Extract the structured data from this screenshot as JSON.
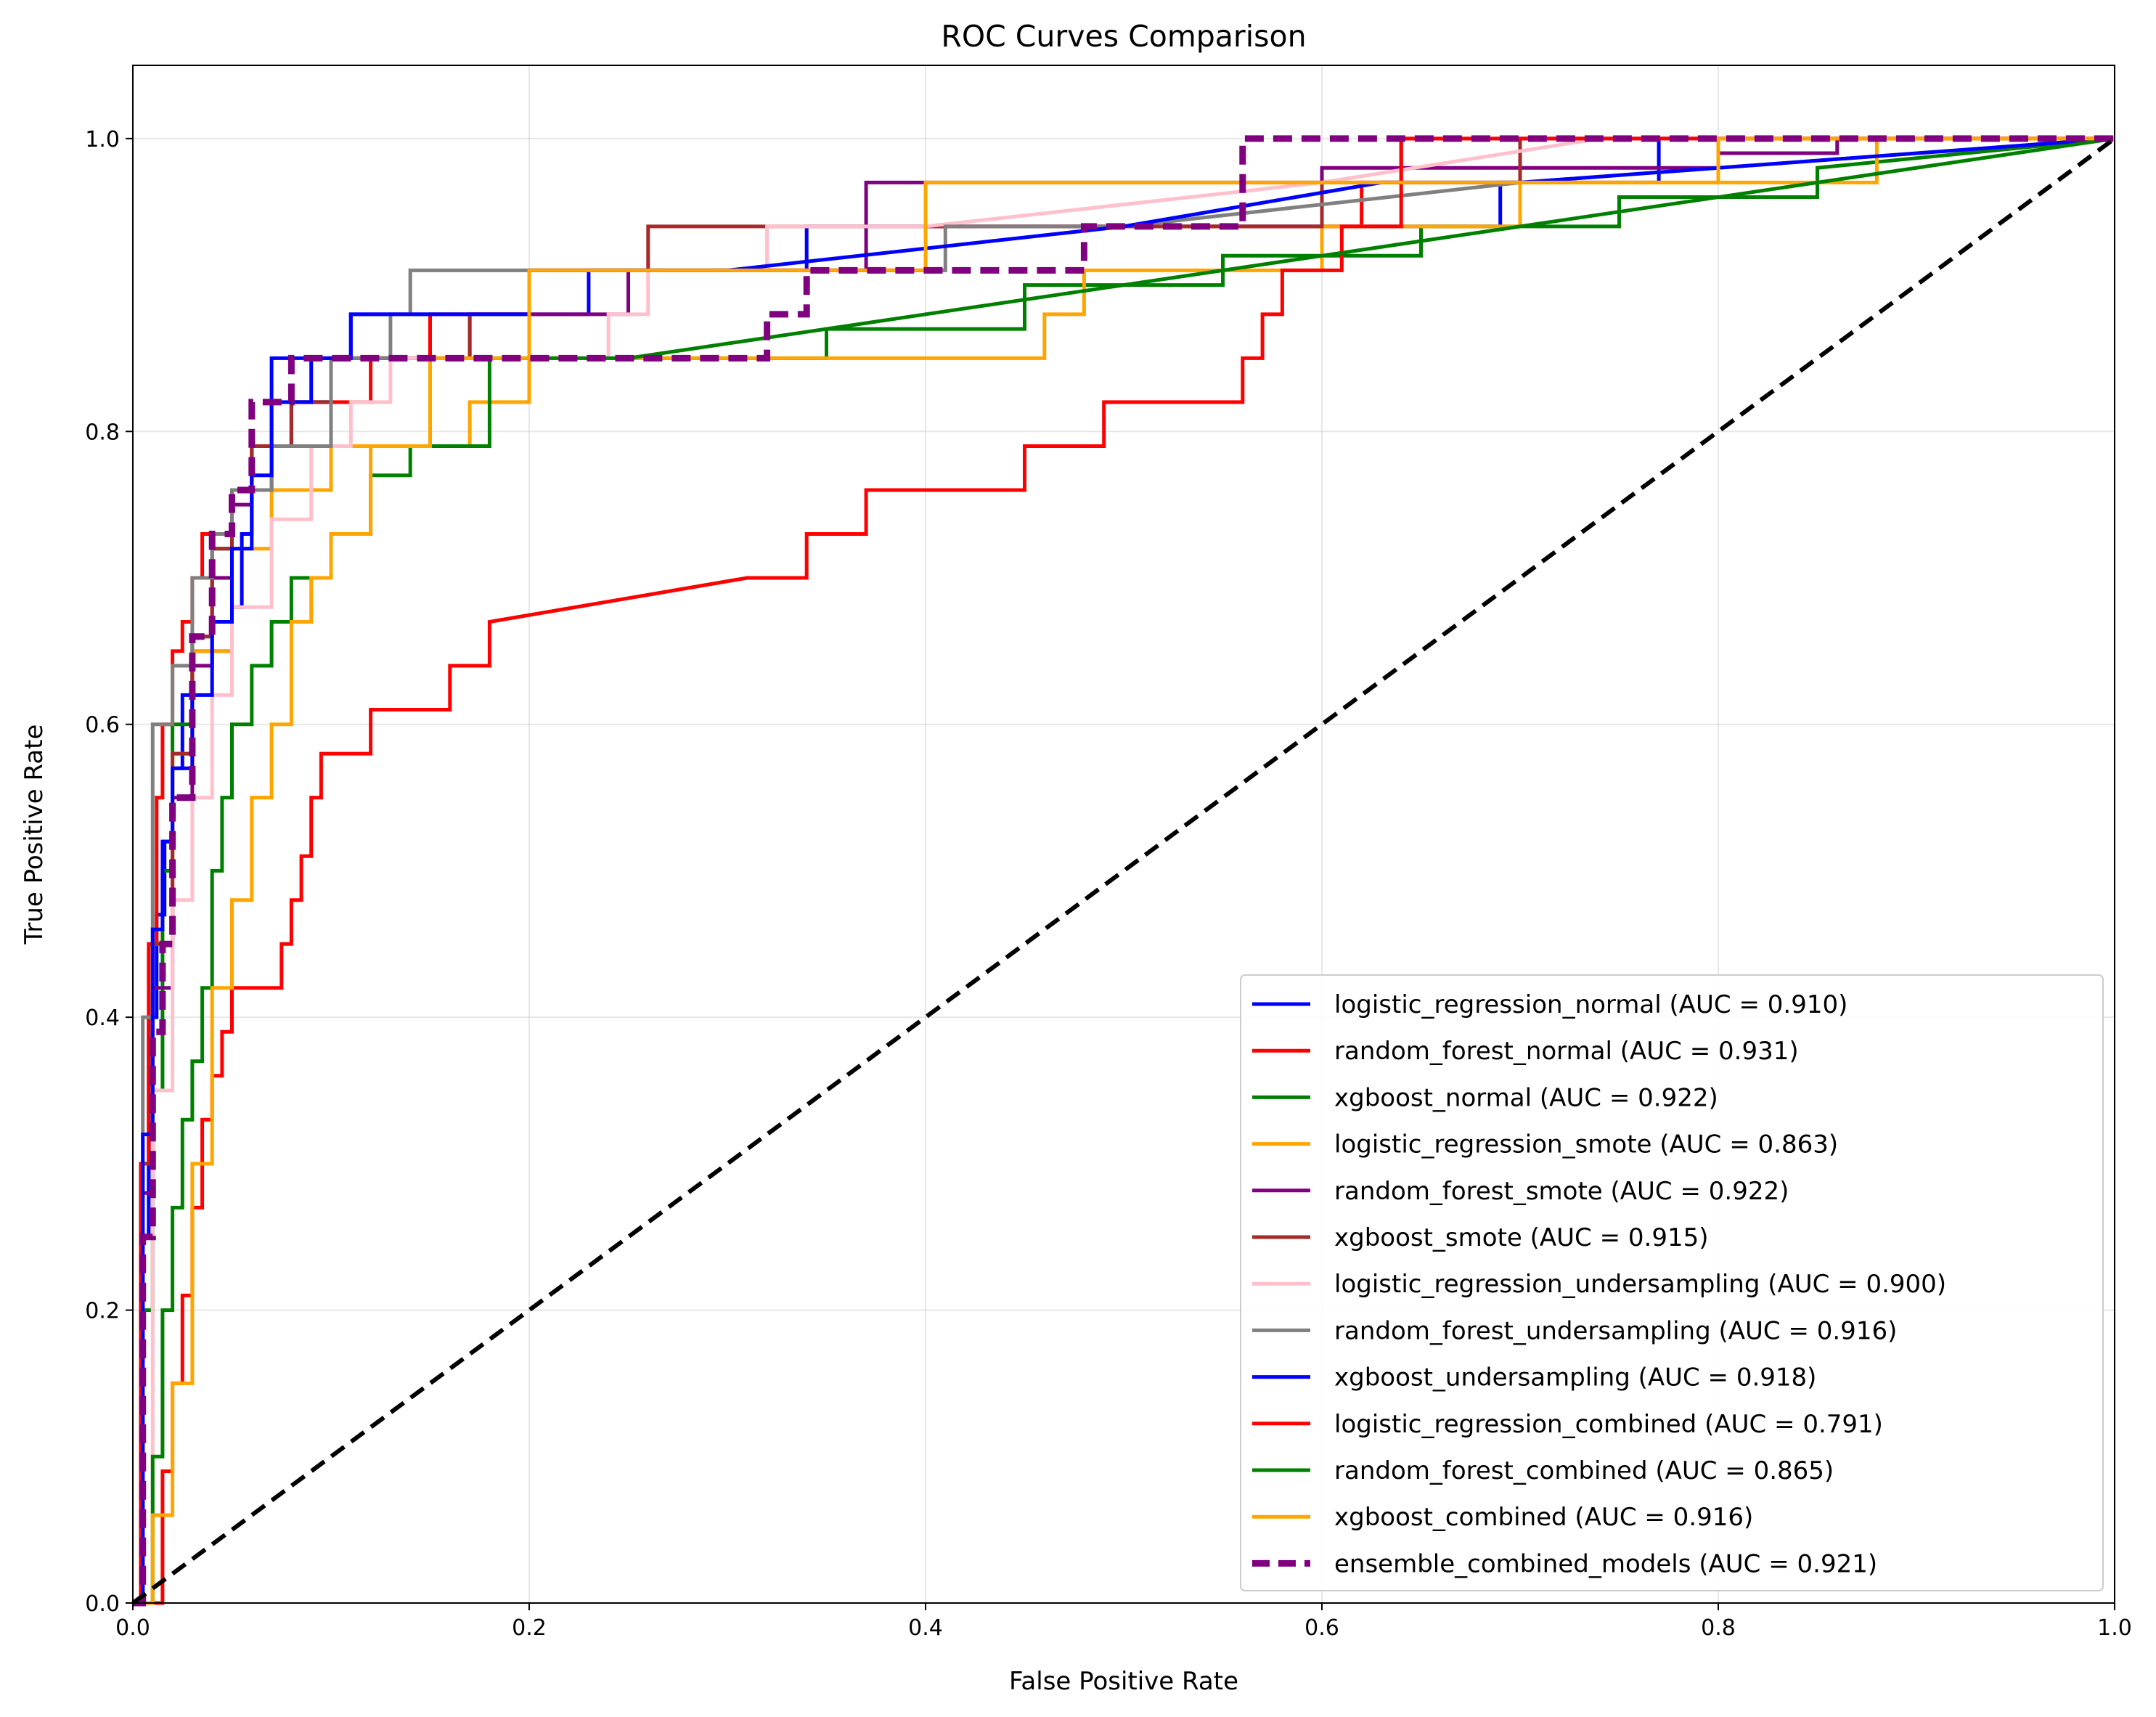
{
  "chart_data": {
    "type": "line",
    "title": "ROC Curves Comparison",
    "xlabel": "False Positive Rate",
    "ylabel": "True Positive Rate",
    "xlim": [
      0.0,
      1.0
    ],
    "ylim": [
      0.0,
      1.05
    ],
    "xticks": [
      "0.0",
      "0.2",
      "0.4",
      "0.6",
      "0.8",
      "1.0"
    ],
    "yticks": [
      "0.0",
      "0.2",
      "0.4",
      "0.6",
      "0.8",
      "1.0"
    ],
    "grid": true,
    "legend_position": "lower-right",
    "diagonal_reference": {
      "style": "dashed",
      "color": "#000000",
      "x": [
        0,
        1
      ],
      "y": [
        0,
        1
      ]
    },
    "series": [
      {
        "name": "logistic_regression_normal (AUC = 0.910)",
        "color": "#0000ff",
        "style": "solid",
        "x": [
          0,
          0.005,
          0.008,
          0.012,
          0.016,
          0.02,
          0.025,
          0.03,
          0.04,
          0.05,
          0.055,
          0.06,
          0.07,
          0.09,
          0.11,
          0.2,
          0.23,
          0.34,
          0.65,
          0.69,
          0.71,
          0.77,
          1.0
        ],
        "y": [
          0,
          0.25,
          0.4,
          0.47,
          0.52,
          0.57,
          0.62,
          0.65,
          0.65,
          0.68,
          0.73,
          0.76,
          0.85,
          0.85,
          0.88,
          0.88,
          0.91,
          0.94,
          0.94,
          0.97,
          0.97,
          1.0,
          1.0
        ]
      },
      {
        "name": "random_forest_normal (AUC = 0.931)",
        "color": "#ff0000",
        "style": "solid",
        "x": [
          0,
          0.004,
          0.008,
          0.012,
          0.015,
          0.02,
          0.025,
          0.03,
          0.035,
          0.04,
          0.05,
          0.07,
          0.1,
          0.12,
          0.15,
          0.2,
          0.3,
          0.4,
          0.5,
          0.6,
          0.62,
          0.64,
          1.0
        ],
        "y": [
          0,
          0.3,
          0.45,
          0.55,
          0.6,
          0.65,
          0.67,
          0.7,
          0.73,
          0.73,
          0.76,
          0.79,
          0.82,
          0.85,
          0.88,
          0.91,
          0.91,
          0.94,
          0.94,
          0.94,
          0.97,
          1.0,
          1.0
        ]
      },
      {
        "name": "xgboost_normal (AUC = 0.922)",
        "color": "#008000",
        "style": "solid",
        "x": [
          0,
          0.005,
          0.01,
          0.015,
          0.02,
          0.03,
          0.04,
          0.05,
          0.06,
          0.08,
          0.1,
          0.13,
          0.18,
          0.25,
          0.35,
          0.45,
          0.55,
          0.65,
          0.75,
          0.85,
          1.0
        ],
        "y": [
          0,
          0.2,
          0.35,
          0.5,
          0.6,
          0.66,
          0.72,
          0.76,
          0.79,
          0.82,
          0.85,
          0.85,
          0.85,
          0.85,
          0.87,
          0.9,
          0.92,
          0.94,
          0.96,
          0.98,
          1.0
        ]
      },
      {
        "name": "logistic_regression_smote (AUC = 0.863)",
        "color": "#ffa500",
        "style": "solid",
        "x": [
          0,
          0.005,
          0.01,
          0.02,
          0.03,
          0.05,
          0.07,
          0.1,
          0.17,
          0.2,
          0.3,
          0.45,
          0.46,
          0.48,
          0.57,
          0.6,
          0.68,
          0.7,
          0.87,
          0.88,
          1.0
        ],
        "y": [
          0,
          0.3,
          0.45,
          0.58,
          0.65,
          0.72,
          0.76,
          0.79,
          0.82,
          0.85,
          0.85,
          0.85,
          0.88,
          0.91,
          0.91,
          0.94,
          0.94,
          0.97,
          0.97,
          1.0,
          1.0
        ]
      },
      {
        "name": "random_forest_smote (AUC = 0.922)",
        "color": "#800080",
        "style": "solid",
        "x": [
          0,
          0.005,
          0.01,
          0.02,
          0.03,
          0.04,
          0.05,
          0.06,
          0.08,
          0.1,
          0.17,
          0.25,
          0.3,
          0.37,
          0.5,
          0.6,
          0.7,
          0.8,
          0.86,
          1.0
        ],
        "y": [
          0,
          0.28,
          0.42,
          0.55,
          0.64,
          0.7,
          0.75,
          0.79,
          0.82,
          0.85,
          0.88,
          0.91,
          0.91,
          0.97,
          0.97,
          0.98,
          0.98,
          0.99,
          1.0,
          1.0
        ]
      },
      {
        "name": "xgboost_smote (AUC = 0.915)",
        "color": "#a52a2a",
        "style": "solid",
        "x": [
          0,
          0.005,
          0.01,
          0.02,
          0.03,
          0.04,
          0.05,
          0.06,
          0.08,
          0.1,
          0.17,
          0.2,
          0.26,
          0.3,
          0.4,
          0.52,
          0.6,
          0.7,
          1.0
        ],
        "y": [
          0,
          0.3,
          0.45,
          0.58,
          0.66,
          0.72,
          0.76,
          0.79,
          0.82,
          0.85,
          0.88,
          0.91,
          0.94,
          0.94,
          0.94,
          0.94,
          0.97,
          1.0,
          1.0
        ]
      },
      {
        "name": "logistic_regression_undersampling (AUC = 0.900)",
        "color": "#ffc0cb",
        "style": "solid",
        "x": [
          0,
          0.01,
          0.02,
          0.03,
          0.04,
          0.05,
          0.07,
          0.09,
          0.11,
          0.13,
          0.2,
          0.24,
          0.26,
          0.3,
          0.32,
          0.4,
          0.6,
          0.74,
          1.0
        ],
        "y": [
          0,
          0.35,
          0.48,
          0.55,
          0.62,
          0.68,
          0.74,
          0.79,
          0.82,
          0.85,
          0.85,
          0.88,
          0.91,
          0.91,
          0.94,
          0.94,
          0.97,
          1.0,
          1.0
        ]
      },
      {
        "name": "random_forest_undersampling (AUC = 0.916)",
        "color": "#808080",
        "style": "solid",
        "x": [
          0,
          0.005,
          0.01,
          0.02,
          0.03,
          0.04,
          0.05,
          0.07,
          0.1,
          0.13,
          0.14,
          0.3,
          0.41,
          0.5,
          0.7,
          1.0
        ],
        "y": [
          0,
          0.4,
          0.6,
          0.64,
          0.7,
          0.73,
          0.76,
          0.79,
          0.85,
          0.88,
          0.91,
          0.91,
          0.94,
          0.94,
          0.97,
          1.0
        ]
      },
      {
        "name": "xgboost_undersampling (AUC = 0.918)",
        "color": "#0000ff",
        "style": "solid",
        "x": [
          0,
          0.005,
          0.01,
          0.015,
          0.02,
          0.03,
          0.04,
          0.05,
          0.06,
          0.07,
          0.09,
          0.11,
          0.14,
          0.2,
          0.3,
          0.5,
          0.63,
          0.7,
          1.0
        ],
        "y": [
          0,
          0.32,
          0.46,
          0.52,
          0.57,
          0.62,
          0.67,
          0.72,
          0.77,
          0.82,
          0.85,
          0.88,
          0.88,
          0.91,
          0.91,
          0.94,
          0.97,
          0.97,
          1.0
        ]
      },
      {
        "name": "logistic_regression_combined (AUC = 0.791)",
        "color": "#ff0000",
        "style": "solid",
        "x": [
          0,
          0.015,
          0.02,
          0.025,
          0.03,
          0.035,
          0.04,
          0.045,
          0.05,
          0.055,
          0.06,
          0.07,
          0.075,
          0.08,
          0.085,
          0.09,
          0.095,
          0.12,
          0.16,
          0.18,
          0.31,
          0.34,
          0.37,
          0.45,
          0.49,
          0.56,
          0.57,
          0.58,
          0.6,
          0.61,
          0.64,
          1.0
        ],
        "y": [
          0,
          0.09,
          0.15,
          0.21,
          0.27,
          0.33,
          0.36,
          0.39,
          0.42,
          0.42,
          0.42,
          0.42,
          0.45,
          0.48,
          0.51,
          0.55,
          0.58,
          0.61,
          0.64,
          0.67,
          0.7,
          0.73,
          0.76,
          0.79,
          0.82,
          0.85,
          0.88,
          0.91,
          0.91,
          0.94,
          1.0,
          1.0
        ]
      },
      {
        "name": "random_forest_combined (AUC = 0.865)",
        "color": "#008000",
        "style": "solid",
        "x": [
          0,
          0.01,
          0.015,
          0.02,
          0.025,
          0.03,
          0.035,
          0.04,
          0.045,
          0.05,
          0.06,
          0.07,
          0.08,
          0.1,
          0.12,
          0.14,
          0.18,
          0.25,
          0.5,
          0.75,
          1.0
        ],
        "y": [
          0,
          0.1,
          0.2,
          0.27,
          0.33,
          0.37,
          0.42,
          0.5,
          0.55,
          0.6,
          0.64,
          0.67,
          0.7,
          0.73,
          0.77,
          0.79,
          0.85,
          0.85,
          0.9,
          0.95,
          1.0
        ]
      },
      {
        "name": "xgboost_combined (AUC = 0.916)",
        "color": "#ffa500",
        "style": "solid",
        "x": [
          0,
          0.01,
          0.02,
          0.03,
          0.04,
          0.05,
          0.06,
          0.07,
          0.08,
          0.09,
          0.1,
          0.12,
          0.15,
          0.2,
          0.3,
          0.4,
          0.6,
          0.72,
          0.8,
          1.0
        ],
        "y": [
          0,
          0.06,
          0.15,
          0.3,
          0.42,
          0.48,
          0.55,
          0.6,
          0.67,
          0.7,
          0.73,
          0.79,
          0.85,
          0.91,
          0.91,
          0.97,
          0.97,
          0.97,
          1.0,
          1.0
        ]
      },
      {
        "name": "ensemble_combined_models (AUC = 0.921)",
        "color": "#800080",
        "style": "dashed",
        "x": [
          0,
          0.005,
          0.01,
          0.015,
          0.02,
          0.03,
          0.04,
          0.05,
          0.06,
          0.08,
          0.1,
          0.15,
          0.25,
          0.32,
          0.34,
          0.41,
          0.48,
          0.56,
          0.6,
          0.8,
          1.0
        ],
        "y": [
          0,
          0.25,
          0.39,
          0.45,
          0.55,
          0.66,
          0.73,
          0.76,
          0.82,
          0.85,
          0.85,
          0.85,
          0.85,
          0.88,
          0.91,
          0.91,
          0.94,
          1.0,
          1.0,
          1.0,
          1.0
        ]
      }
    ]
  }
}
